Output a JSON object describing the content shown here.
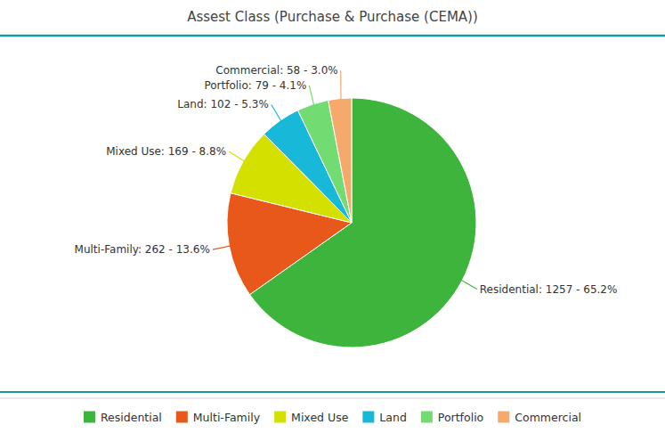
{
  "chart_data": {
    "type": "pie",
    "title": "Assest Class (Purchase & Purchase (CEMA))",
    "categories": [
      "Residential",
      "Multi-Family",
      "Mixed Use",
      "Land",
      "Portfolio",
      "Commercial"
    ],
    "values": [
      1257,
      262,
      169,
      102,
      79,
      58
    ],
    "percentages": [
      65.2,
      13.6,
      8.8,
      5.3,
      4.1,
      3.0
    ],
    "value_labels": [
      "Residential: 1257 - 65.2%",
      "Multi-Family: 262 - 13.6%",
      "Mixed Use: 169 - 8.8%",
      "Land: 102 - 5.3%",
      "Portfolio: 79 - 4.1%",
      "Commercial: 58 - 3.0%"
    ],
    "colors": [
      "#3db53d",
      "#e8581a",
      "#d4e000",
      "#18b8d8",
      "#72dc72",
      "#f5a96a"
    ],
    "legend": "bottom",
    "data_labels": true
  }
}
